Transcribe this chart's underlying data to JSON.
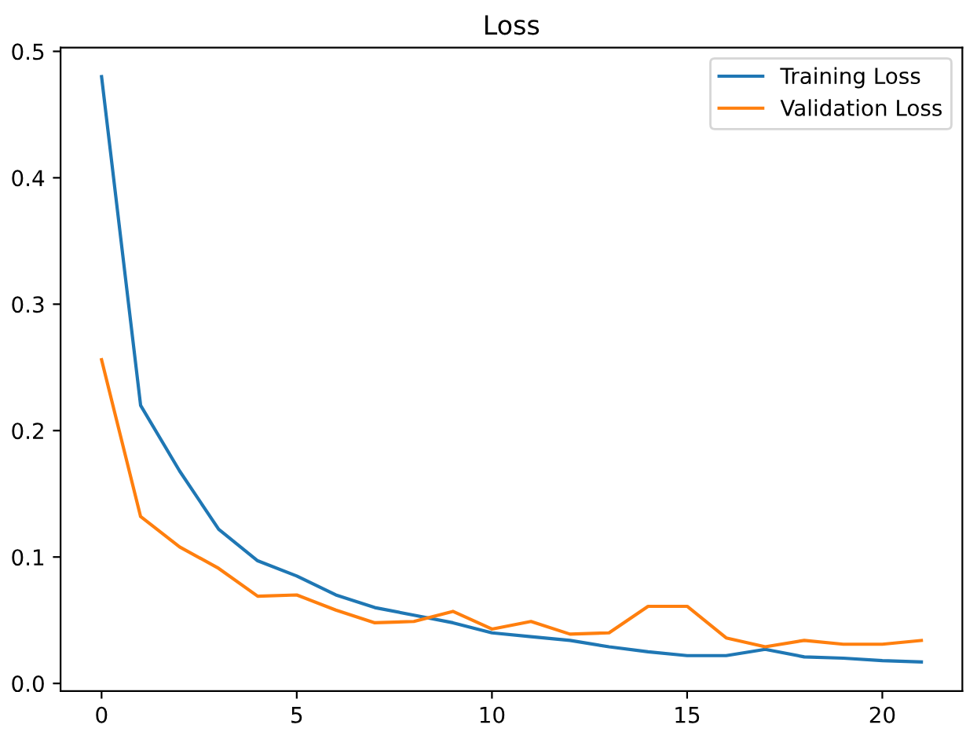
{
  "chart_data": {
    "type": "line",
    "title": "Loss",
    "x": [
      0,
      1,
      2,
      3,
      4,
      5,
      6,
      7,
      8,
      9,
      10,
      11,
      12,
      13,
      14,
      15,
      16,
      17,
      18,
      19,
      20,
      21
    ],
    "series": [
      {
        "name": "Training Loss",
        "color": "#1f77b4",
        "values": [
          0.48,
          0.22,
          0.168,
          0.122,
          0.097,
          0.085,
          0.07,
          0.06,
          0.054,
          0.048,
          0.04,
          0.037,
          0.034,
          0.029,
          0.025,
          0.022,
          0.022,
          0.027,
          0.021,
          0.02,
          0.018,
          0.017
        ]
      },
      {
        "name": "Validation Loss",
        "color": "#ff7f0e",
        "values": [
          0.256,
          0.132,
          0.108,
          0.091,
          0.069,
          0.07,
          0.058,
          0.048,
          0.049,
          0.057,
          0.043,
          0.049,
          0.039,
          0.04,
          0.061,
          0.061,
          0.036,
          0.029,
          0.034,
          0.031,
          0.031,
          0.034
        ]
      }
    ],
    "xlim": [
      -1.05,
      22.05
    ],
    "ylim": [
      -0.006,
      0.503
    ],
    "xticks": [
      0,
      5,
      10,
      15,
      20
    ],
    "yticks": [
      {
        "value": 0,
        "label": "0.0"
      },
      0.1,
      0.2,
      0.3,
      0.4,
      0.5
    ],
    "legend": "top right",
    "grid": false
  }
}
